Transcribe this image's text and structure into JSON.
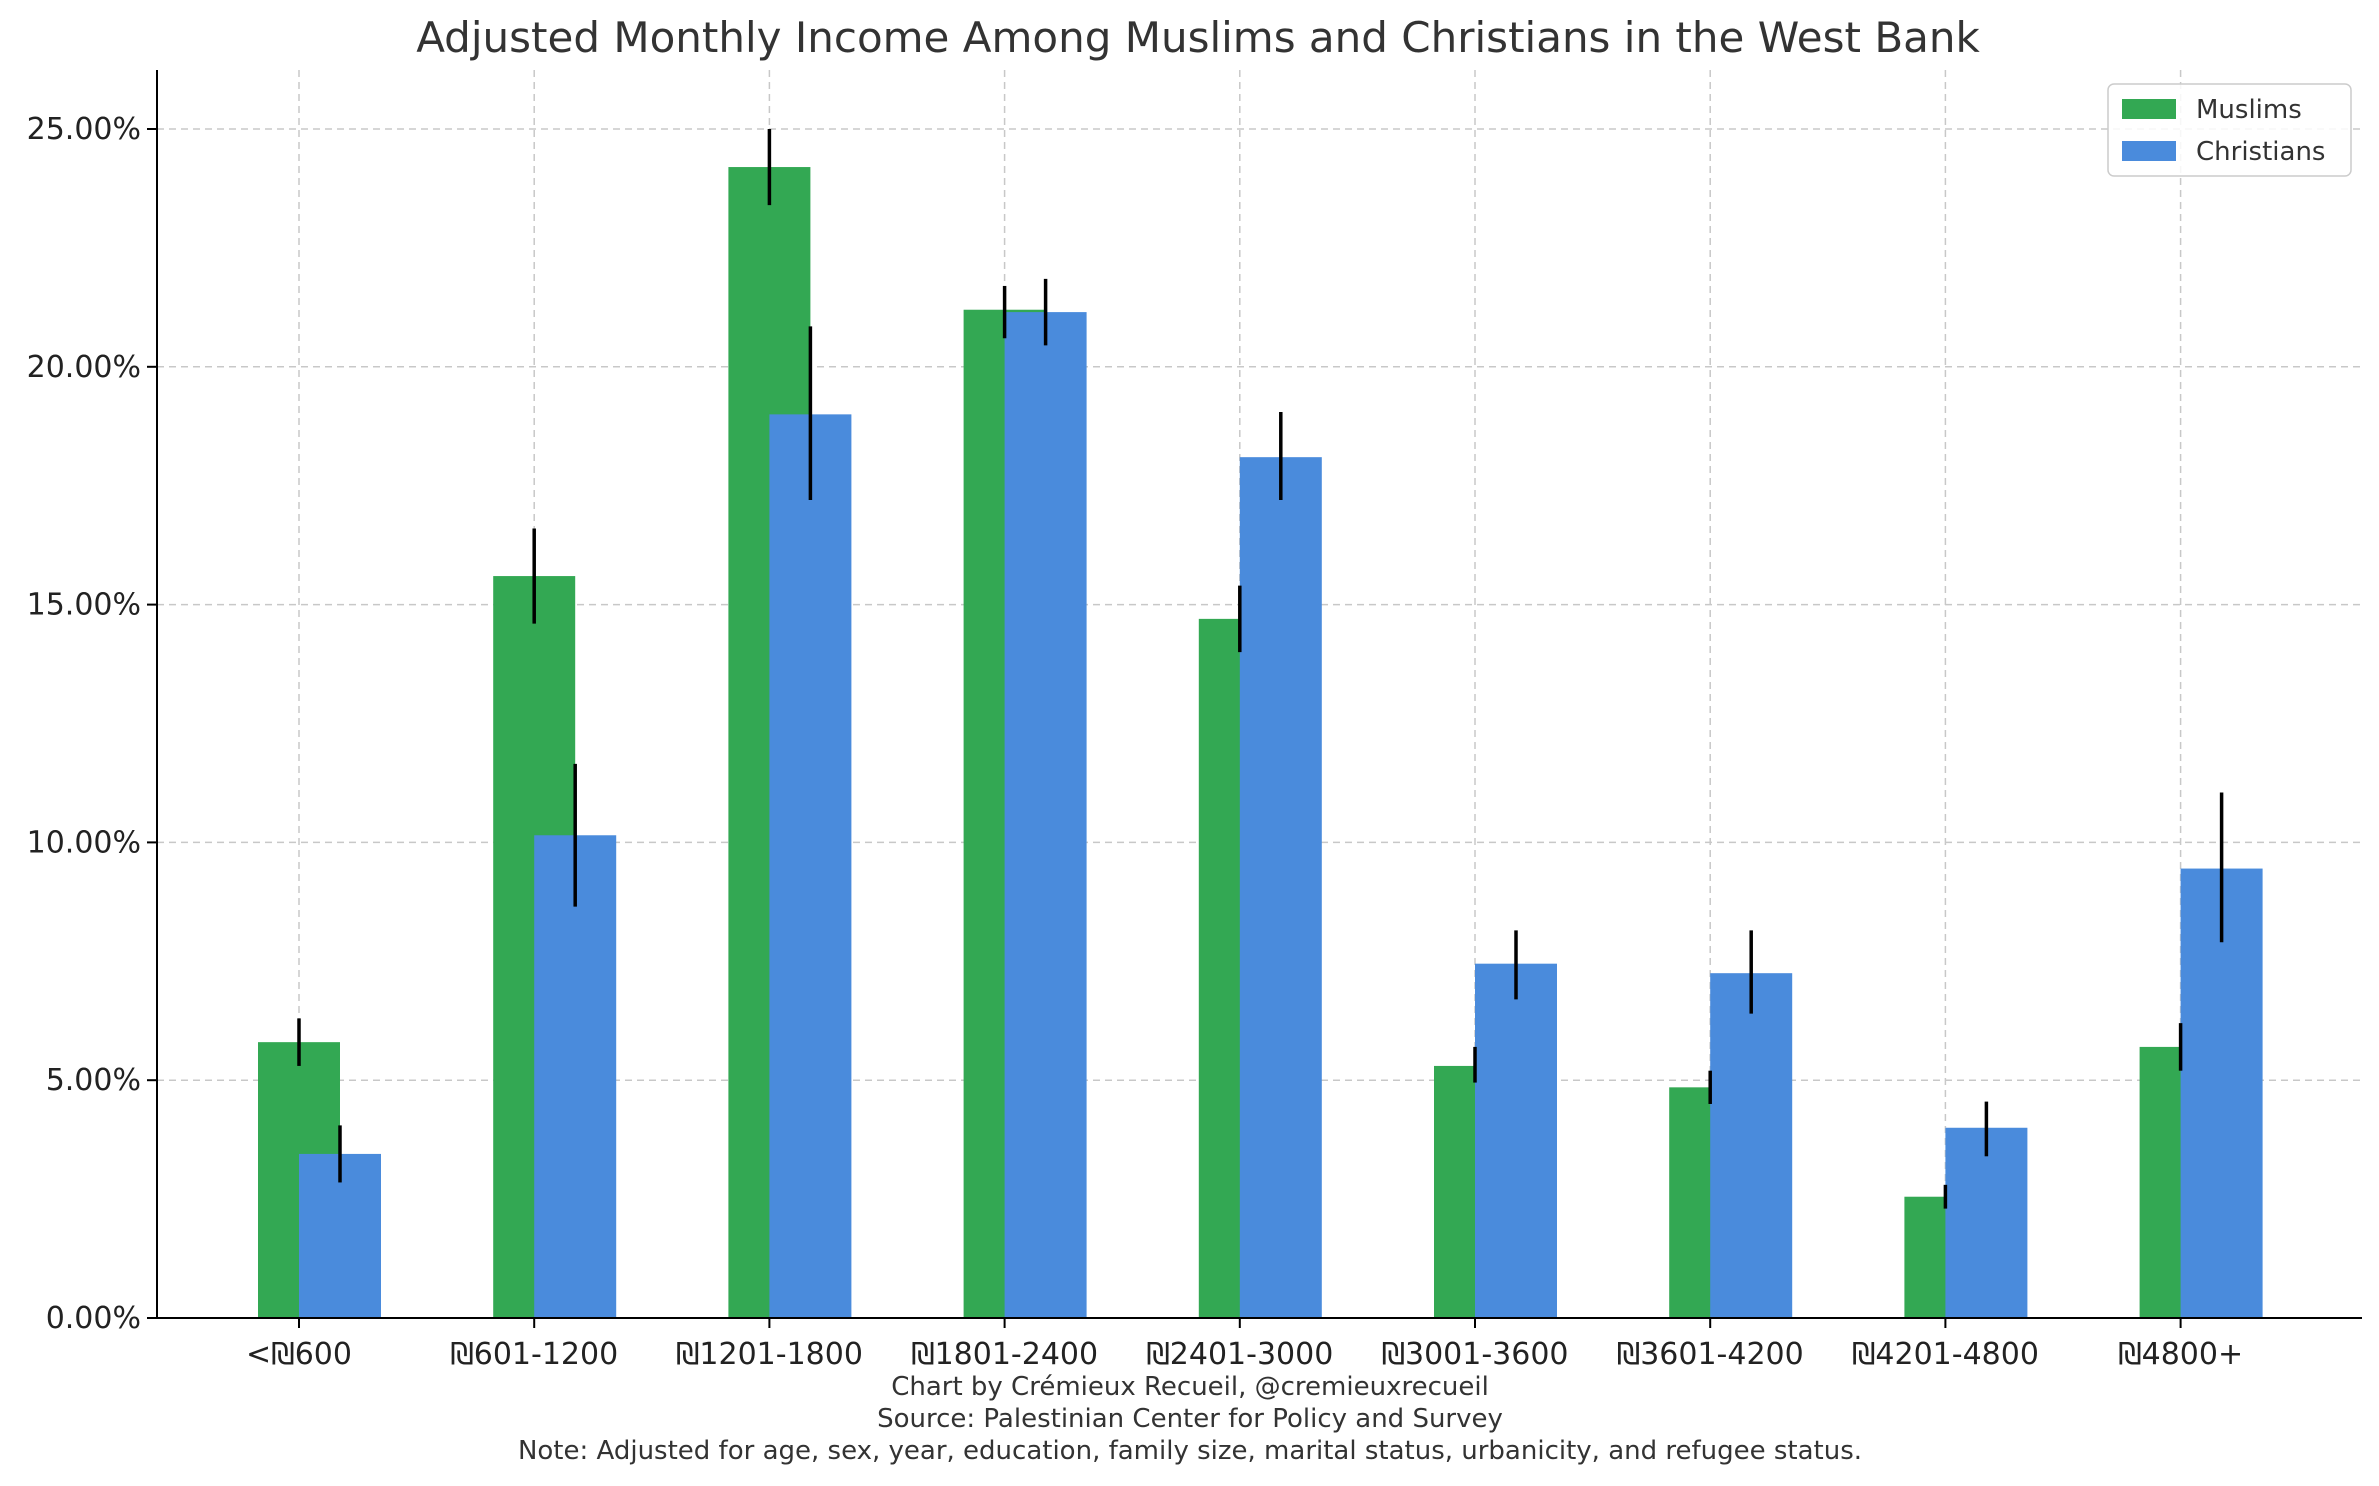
{
  "chart_data": {
    "type": "bar",
    "title": "Adjusted Monthly Income Among Muslims and Christians in the West Bank",
    "xlabel": "",
    "ylabel": "",
    "categories": [
      "<₪600",
      "₪601-1200",
      "₪1201-1800",
      "₪1801-2400",
      "₪2401-3000",
      "₪3001-3600",
      "₪3601-4200",
      "₪4201-4800",
      "₪4800+"
    ],
    "series": [
      {
        "name": "Muslims",
        "color": "#33a853",
        "values": [
          5.8,
          15.6,
          24.2,
          21.2,
          14.7,
          5.3,
          4.85,
          2.55,
          5.7
        ],
        "error_low": [
          5.3,
          14.6,
          23.4,
          20.6,
          14.0,
          4.95,
          4.5,
          2.3,
          5.2
        ],
        "error_high": [
          6.3,
          16.6,
          25.0,
          21.7,
          15.4,
          5.7,
          5.2,
          2.8,
          6.2
        ]
      },
      {
        "name": "Christians",
        "color": "#4a8bdc",
        "values": [
          3.45,
          10.15,
          19.0,
          21.15,
          18.1,
          7.45,
          7.25,
          4.0,
          9.45
        ],
        "error_low": [
          2.85,
          8.65,
          17.2,
          20.45,
          17.2,
          6.7,
          6.4,
          3.4,
          7.9
        ],
        "error_high": [
          4.05,
          11.65,
          20.85,
          21.85,
          19.05,
          8.15,
          8.15,
          4.55,
          11.05
        ]
      }
    ],
    "ylim": [
      0,
      26.2
    ],
    "yticks": [
      0,
      5,
      10,
      15,
      20,
      25
    ],
    "ytick_labels": [
      "0.00%",
      "5.00%",
      "10.00%",
      "15.00%",
      "20.00%",
      "25.00%"
    ],
    "grid": true,
    "legend_position": "top-right"
  },
  "footer": {
    "credit": "Chart by Crémieux Recueil, @cremieuxrecueil",
    "source": "Source: Palestinian Center for Policy and Survey",
    "note": "Note: Adjusted for age, sex, year, education, family size, marital status, urbanicity, and refugee status."
  }
}
